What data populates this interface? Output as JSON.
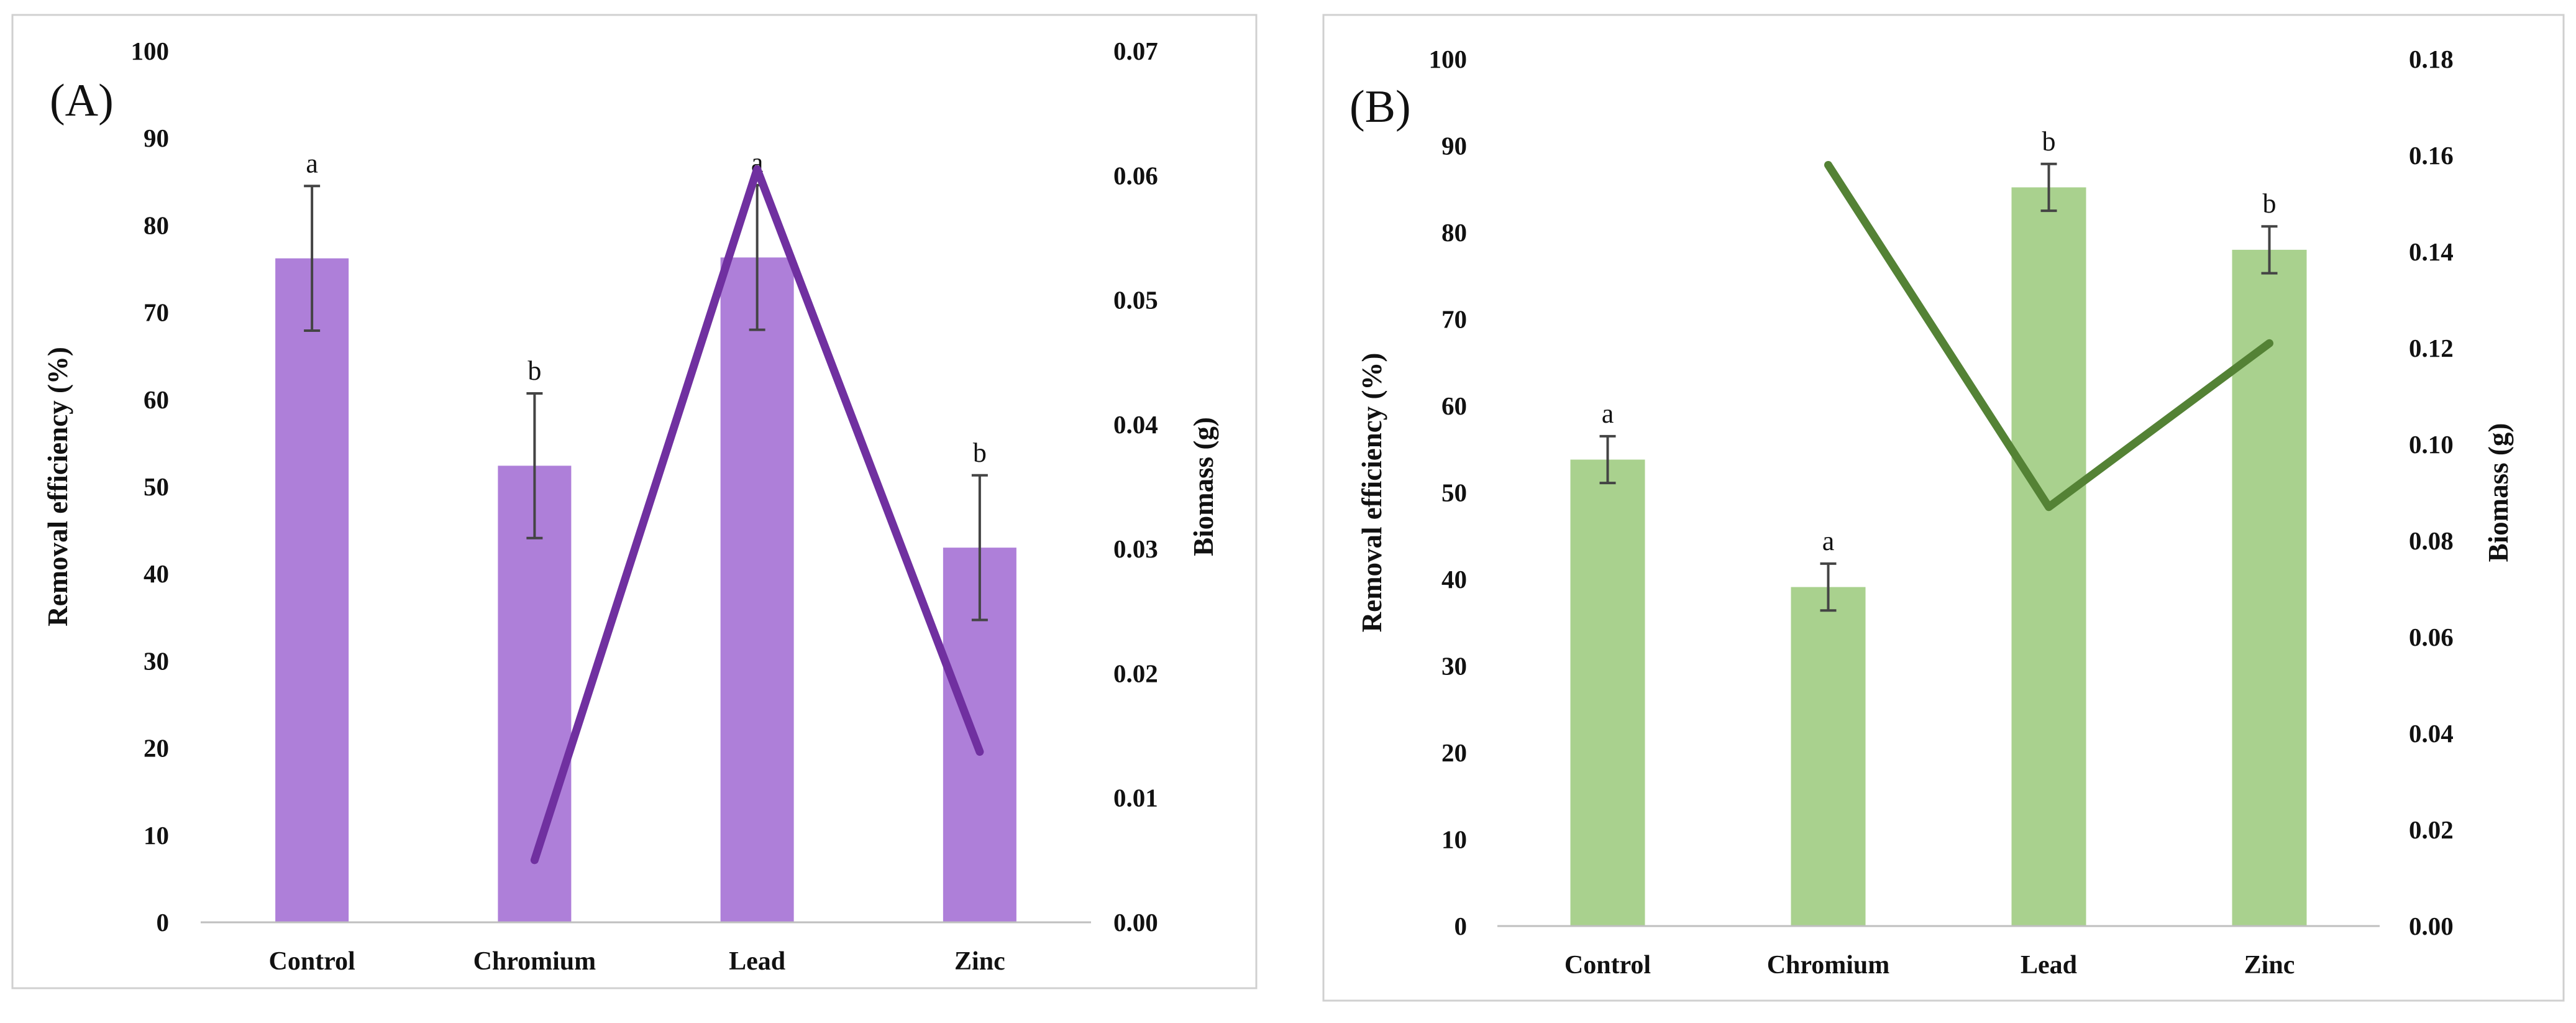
{
  "chart_data": [
    {
      "type": "bar",
      "panel_label": "(A)",
      "categories": [
        "Control",
        "Chromium",
        "Lead",
        "Zinc"
      ],
      "series": [
        {
          "name": "Removal efficiency",
          "axis": "left",
          "values": [
            76.2,
            52.4,
            76.3,
            43.0
          ],
          "error": [
            8.3,
            8.3,
            8.3,
            8.3
          ],
          "labels": [
            "a",
            "b",
            "a",
            "b"
          ],
          "color": "#ae7fd9"
        },
        {
          "name": "Biomass",
          "axis": "right",
          "type": "line",
          "values": [
            null,
            0.005,
            0.0605,
            0.0137
          ],
          "color": "#7030a0"
        }
      ],
      "ylabel": "Removal efficiency (%)",
      "ylim": [
        0,
        100
      ],
      "yticks": [
        "0",
        "10",
        "20",
        "30",
        "40",
        "50",
        "60",
        "70",
        "80",
        "90",
        "100"
      ],
      "y2label": "Biomass (g)",
      "y2lim": [
        0,
        0.07
      ],
      "y2ticks": [
        "0.00",
        "0.01",
        "0.02",
        "0.03",
        "0.04",
        "0.05",
        "0.06",
        "0.07"
      ]
    },
    {
      "type": "bar",
      "panel_label": "(B)",
      "categories": [
        "Control",
        "Chromium",
        "Lead",
        "Zinc"
      ],
      "series": [
        {
          "name": "Removal efficiency",
          "axis": "left",
          "values": [
            53.8,
            39.1,
            85.2,
            78.0
          ],
          "error": [
            2.7,
            2.7,
            2.7,
            2.7
          ],
          "labels": [
            "a",
            "a",
            "b",
            "b"
          ],
          "color": "#a9d18e"
        },
        {
          "name": "Biomass",
          "axis": "right",
          "type": "line",
          "values": [
            null,
            0.158,
            0.087,
            0.121
          ],
          "color": "#548235"
        }
      ],
      "ylabel": "Removal efficiency (%)",
      "ylim": [
        0,
        100
      ],
      "yticks": [
        "0",
        "10",
        "20",
        "30",
        "40",
        "50",
        "60",
        "70",
        "80",
        "90",
        "100"
      ],
      "y2label": "Biomass (g)",
      "y2lim": [
        0,
        0.18
      ],
      "y2ticks": [
        "0.00",
        "0.02",
        "0.04",
        "0.06",
        "0.08",
        "0.10",
        "0.12",
        "0.14",
        "0.16",
        "0.18"
      ]
    }
  ]
}
